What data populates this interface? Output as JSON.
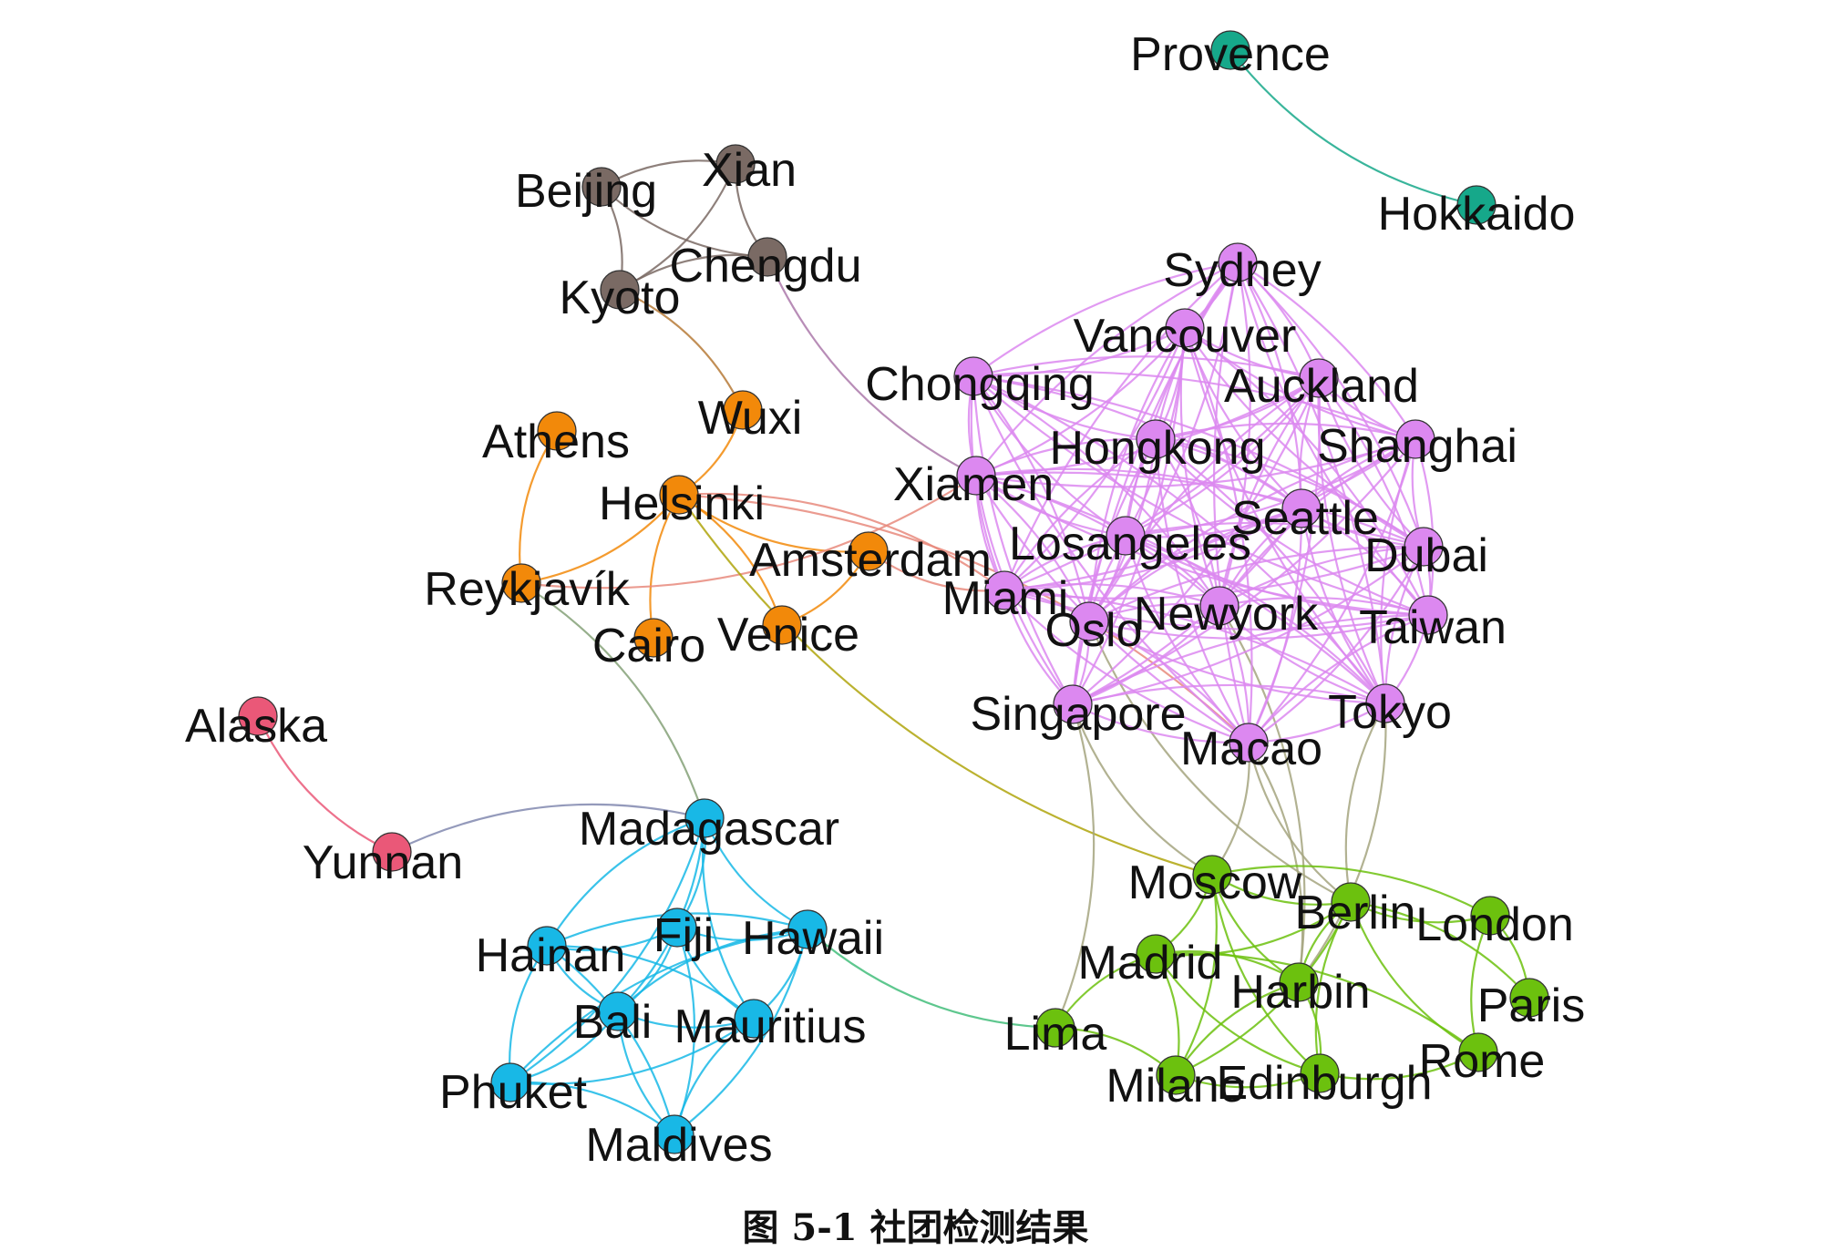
{
  "caption": "图 5-1  社团检测结果",
  "communities": {
    "brown": {
      "color": "#7a6a64"
    },
    "orange": {
      "color": "#f2890a"
    },
    "purple": {
      "color": "#dc88f0"
    },
    "teal": {
      "color": "#16a88a"
    },
    "pink": {
      "color": "#ea5878"
    },
    "cyan": {
      "color": "#18b8e6"
    },
    "green": {
      "color": "#6cc10e"
    }
  },
  "nodes": [
    {
      "id": "Provence",
      "label": "Provence",
      "community": "teal"
    },
    {
      "id": "Hokkaido",
      "label": "Hokkaido",
      "community": "teal"
    },
    {
      "id": "Beijing",
      "label": "Beijing",
      "community": "brown"
    },
    {
      "id": "Xian",
      "label": "Xian",
      "community": "brown"
    },
    {
      "id": "Chengdu",
      "label": "Chengdu",
      "community": "brown"
    },
    {
      "id": "Kyoto",
      "label": "Kyoto",
      "community": "brown"
    },
    {
      "id": "Wuxi",
      "label": "Wuxi",
      "community": "orange"
    },
    {
      "id": "Athens",
      "label": "Athens",
      "community": "orange"
    },
    {
      "id": "Helsinki",
      "label": "Helsinki",
      "community": "orange"
    },
    {
      "id": "Amsterdam",
      "label": "Amsterdam",
      "community": "orange"
    },
    {
      "id": "Reykjavik",
      "label": "Reykjavík",
      "community": "orange"
    },
    {
      "id": "Cairo",
      "label": "Cairo",
      "community": "orange"
    },
    {
      "id": "Venice",
      "label": "Venice",
      "community": "orange"
    },
    {
      "id": "Sydney",
      "label": "Sydney",
      "community": "purple"
    },
    {
      "id": "Vancouver",
      "label": "Vancouver",
      "community": "purple"
    },
    {
      "id": "Chongqing",
      "label": "Chongqing",
      "community": "purple"
    },
    {
      "id": "Auckland",
      "label": "Auckland",
      "community": "purple"
    },
    {
      "id": "Hongkong",
      "label": "Hongkong",
      "community": "purple"
    },
    {
      "id": "Shanghai",
      "label": "Shanghai",
      "community": "purple"
    },
    {
      "id": "Xiamen",
      "label": "Xiamen",
      "community": "purple"
    },
    {
      "id": "Seattle",
      "label": "Seattle",
      "community": "purple"
    },
    {
      "id": "Losangeles",
      "label": "Losangeles",
      "community": "purple"
    },
    {
      "id": "Dubai",
      "label": "Dubai",
      "community": "purple"
    },
    {
      "id": "Miami",
      "label": "Miami",
      "community": "purple"
    },
    {
      "id": "Newyork",
      "label": "Newyork",
      "community": "purple"
    },
    {
      "id": "Taiwan",
      "label": "Taiwan",
      "community": "purple"
    },
    {
      "id": "Oslo",
      "label": "Oslo",
      "community": "purple"
    },
    {
      "id": "Singapore",
      "label": "Singapore",
      "community": "purple"
    },
    {
      "id": "Tokyo",
      "label": "Tokyo",
      "community": "purple"
    },
    {
      "id": "Macao",
      "label": "Macao",
      "community": "purple"
    },
    {
      "id": "Alaska",
      "label": "Alaska",
      "community": "pink"
    },
    {
      "id": "Yunnan",
      "label": "Yunnan",
      "community": "pink"
    },
    {
      "id": "Madagascar",
      "label": "Madagascar",
      "community": "cyan"
    },
    {
      "id": "Hainan",
      "label": "Hainan",
      "community": "cyan"
    },
    {
      "id": "Fiji",
      "label": "Fiji",
      "community": "cyan"
    },
    {
      "id": "Hawaii",
      "label": "Hawaii",
      "community": "cyan"
    },
    {
      "id": "Bali",
      "label": "Bali",
      "community": "cyan"
    },
    {
      "id": "Mauritius",
      "label": "Mauritius",
      "community": "cyan"
    },
    {
      "id": "Phuket",
      "label": "Phuket",
      "community": "cyan"
    },
    {
      "id": "Maldives",
      "label": "Maldives",
      "community": "cyan"
    },
    {
      "id": "Moscow",
      "label": "Moscow",
      "community": "green"
    },
    {
      "id": "Berlin",
      "label": "Berlin",
      "community": "green"
    },
    {
      "id": "London",
      "label": "London",
      "community": "green"
    },
    {
      "id": "Madrid",
      "label": "Madrid",
      "community": "green"
    },
    {
      "id": "Harbin",
      "label": "Harbin",
      "community": "green"
    },
    {
      "id": "Paris",
      "label": "Paris",
      "community": "green"
    },
    {
      "id": "Lima",
      "label": "Lima",
      "community": "green"
    },
    {
      "id": "Rome",
      "label": "Rome",
      "community": "green"
    },
    {
      "id": "Milano",
      "label": "Milano",
      "community": "green"
    },
    {
      "id": "Edinburgh",
      "label": "Edinburgh",
      "community": "green"
    }
  ],
  "edges": [
    [
      "Provence",
      "Hokkaido"
    ],
    [
      "Beijing",
      "Xian"
    ],
    [
      "Beijing",
      "Chengdu"
    ],
    [
      "Beijing",
      "Kyoto"
    ],
    [
      "Xian",
      "Chengdu"
    ],
    [
      "Xian",
      "Kyoto"
    ],
    [
      "Chengdu",
      "Kyoto"
    ],
    [
      "Kyoto",
      "Wuxi"
    ],
    [
      "Chengdu",
      "Xiamen"
    ],
    [
      "Wuxi",
      "Helsinki"
    ],
    [
      "Athens",
      "Reykjavik"
    ],
    [
      "Helsinki",
      "Reykjavik"
    ],
    [
      "Helsinki",
      "Cairo"
    ],
    [
      "Helsinki",
      "Venice"
    ],
    [
      "Helsinki",
      "Amsterdam"
    ],
    [
      "Amsterdam",
      "Venice"
    ],
    [
      "Reykjavik",
      "Xiamen"
    ],
    [
      "Helsinki",
      "Miami"
    ],
    [
      "Helsinki",
      "Moscow"
    ],
    [
      "Helsinki",
      "Macao"
    ],
    [
      "Amsterdam",
      "Miami"
    ],
    [
      "Reykjavik",
      "Madagascar"
    ],
    [
      "Alaska",
      "Yunnan"
    ],
    [
      "Yunnan",
      "Madagascar"
    ],
    [
      "Madagascar",
      "Hainan"
    ],
    [
      "Madagascar",
      "Fiji"
    ],
    [
      "Madagascar",
      "Hawaii"
    ],
    [
      "Madagascar",
      "Bali"
    ],
    [
      "Madagascar",
      "Mauritius"
    ],
    [
      "Madagascar",
      "Phuket"
    ],
    [
      "Hainan",
      "Fiji"
    ],
    [
      "Hainan",
      "Hawaii"
    ],
    [
      "Hainan",
      "Bali"
    ],
    [
      "Hainan",
      "Mauritius"
    ],
    [
      "Hainan",
      "Phuket"
    ],
    [
      "Hainan",
      "Maldives"
    ],
    [
      "Fiji",
      "Hawaii"
    ],
    [
      "Fiji",
      "Bali"
    ],
    [
      "Fiji",
      "Mauritius"
    ],
    [
      "Fiji",
      "Maldives"
    ],
    [
      "Hawaii",
      "Bali"
    ],
    [
      "Hawaii",
      "Mauritius"
    ],
    [
      "Hawaii",
      "Phuket"
    ],
    [
      "Hawaii",
      "Maldives"
    ],
    [
      "Bali",
      "Mauritius"
    ],
    [
      "Bali",
      "Phuket"
    ],
    [
      "Bali",
      "Maldives"
    ],
    [
      "Mauritius",
      "Phuket"
    ],
    [
      "Mauritius",
      "Maldives"
    ],
    [
      "Phuket",
      "Maldives"
    ],
    [
      "Hawaii",
      "Lima"
    ],
    [
      "Singapore",
      "Lima"
    ],
    [
      "Singapore",
      "Moscow"
    ],
    [
      "Macao",
      "Moscow"
    ],
    [
      "Macao",
      "Berlin"
    ],
    [
      "Macao",
      "Harbin"
    ],
    [
      "Tokyo",
      "Berlin"
    ],
    [
      "Tokyo",
      "Harbin"
    ],
    [
      "Oslo",
      "Berlin"
    ],
    [
      "Newyork",
      "Harbin"
    ],
    [
      "Moscow",
      "Berlin"
    ],
    [
      "Moscow",
      "Madrid"
    ],
    [
      "Moscow",
      "Harbin"
    ],
    [
      "Moscow",
      "London"
    ],
    [
      "Moscow",
      "Edinburgh"
    ],
    [
      "Moscow",
      "Milano"
    ],
    [
      "Berlin",
      "London"
    ],
    [
      "Berlin",
      "Paris"
    ],
    [
      "Berlin",
      "Rome"
    ],
    [
      "Berlin",
      "Madrid"
    ],
    [
      "Berlin",
      "Harbin"
    ],
    [
      "Berlin",
      "Milano"
    ],
    [
      "Berlin",
      "Edinburgh"
    ],
    [
      "London",
      "Paris"
    ],
    [
      "London",
      "Rome"
    ],
    [
      "Madrid",
      "Milano"
    ],
    [
      "Madrid",
      "Edinburgh"
    ],
    [
      "Madrid",
      "Harbin"
    ],
    [
      "Madrid",
      "Lima"
    ],
    [
      "Harbin",
      "Edinburgh"
    ],
    [
      "Harbin",
      "Milano"
    ],
    [
      "Lima",
      "Milano"
    ],
    [
      "Milano",
      "Edinburgh"
    ],
    [
      "Rome",
      "Edinburgh"
    ],
    [
      "Rome",
      "Madrid"
    ]
  ]
}
